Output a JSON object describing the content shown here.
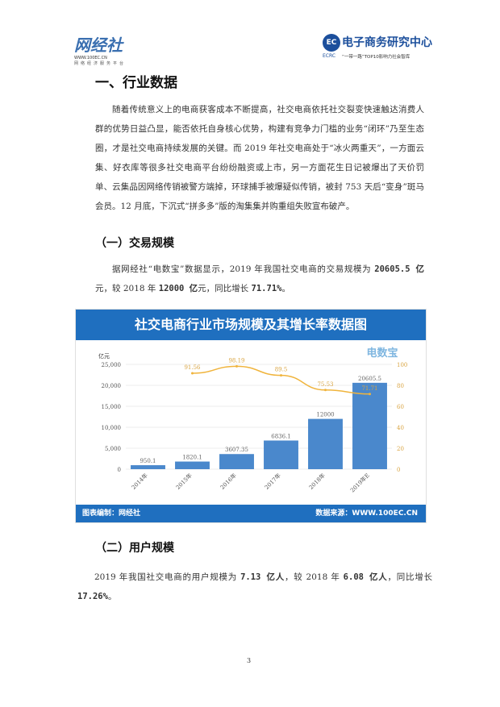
{
  "header": {
    "left_logo": {
      "brand": "网经社",
      "site": "WWW.100EC.CN",
      "slogan": "网络经济服务平台"
    },
    "right_logo": {
      "brand": "电子商务研究中心",
      "abbr": "ECRC",
      "tagline": "“一带一路”TOP10影响力社会智库"
    }
  },
  "section_title": "一、行业数据",
  "intro": "随着传统意义上的电商获客成本不断提高，社交电商依托社交裂变快速触达消费人群的优势日益凸显，能否依托自身核心优势，构建有竞争力门槛的业务“闭环”乃至生态圈，才是社交电商持续发展的关键。而 2019 年社交电商处于“冰火两重天”，一方面云集、好衣库等很多社交电商平台纷纷融资或上市，另一方面花生日记被爆出了天价罚单、云集品因网络传销被警方端掉，环球捕手被爆疑似传销，被封 753 天后“变身”斑马会员。12 月底，下沉式“拼多多”版的淘集集并购重组失败宣布破产。",
  "sub1": {
    "title": "（一）交易规模",
    "text_a": "据网经社“电数宝”数据显示，2019 年我国社交电商的交易规模为 ",
    "v1": "20605.5 亿",
    "text_b": "元，较 2018 年 ",
    "v2": "12000 亿",
    "text_c": "元，同比增长 ",
    "v3": "71.71%",
    "text_d": "。"
  },
  "chart_data": {
    "type": "bar+line",
    "title": "社交电商行业市场规模及其增长率数据图",
    "ylabel": "亿元",
    "categories": [
      "2014年",
      "2015年",
      "2016年",
      "2017年",
      "2018年",
      "2019年E"
    ],
    "series": [
      {
        "type": "bar",
        "values": [
          950.1,
          1820.1,
          3607.35,
          6836.1,
          12000,
          20605.5
        ],
        "labels": [
          "950.1",
          "1820.1",
          "3607.35",
          "6836.1",
          "12000",
          "20605.5"
        ],
        "color": "#4a88cc"
      },
      {
        "type": "line",
        "axis": "right",
        "values": [
          null,
          91.56,
          98.19,
          89.5,
          75.53,
          71.71
        ],
        "labels": [
          "",
          "91.56",
          "98.19",
          "89.5",
          "75.53",
          "71.71"
        ],
        "color": "#f0b43c"
      }
    ],
    "ylim": [
      0,
      25000
    ],
    "yticks": [
      "0",
      "5,000",
      "10,000",
      "15,000",
      "20,000",
      "25,000"
    ],
    "y2lim": [
      0,
      100
    ],
    "y2ticks": [
      "0",
      "20",
      "40",
      "60",
      "80",
      "100"
    ],
    "watermark": "电数宝",
    "footer_left": "图表编制：网经社",
    "footer_right": "数据来源：WWW.100EC.CN"
  },
  "sub2": {
    "title": "（二）用户规模",
    "text_a": "2019 年我国社交电商的用户规模为 ",
    "v1": "7.13 亿人",
    "text_b": "，较 2018 年 ",
    "v2": "6.08 亿人",
    "text_c": "，同比增长 ",
    "v3": "17.26%",
    "text_d": "。"
  },
  "page_number": "3"
}
